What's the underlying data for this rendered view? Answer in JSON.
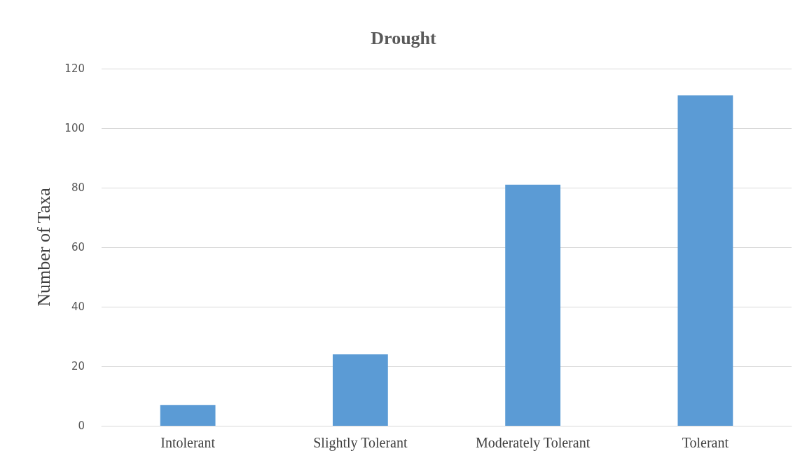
{
  "chart_data": {
    "type": "bar",
    "title": "Drought",
    "ylabel": "Number of Taxa",
    "categories": [
      "Intolerant",
      "Slightly Tolerant",
      "Moderately Tolerant",
      "Tolerant"
    ],
    "values": [
      7,
      24,
      81,
      111
    ],
    "color": "#5b9bd5",
    "ylim": [
      0,
      120
    ],
    "yticks": [
      0,
      20,
      40,
      60,
      80,
      100,
      120
    ],
    "grid": "y"
  }
}
